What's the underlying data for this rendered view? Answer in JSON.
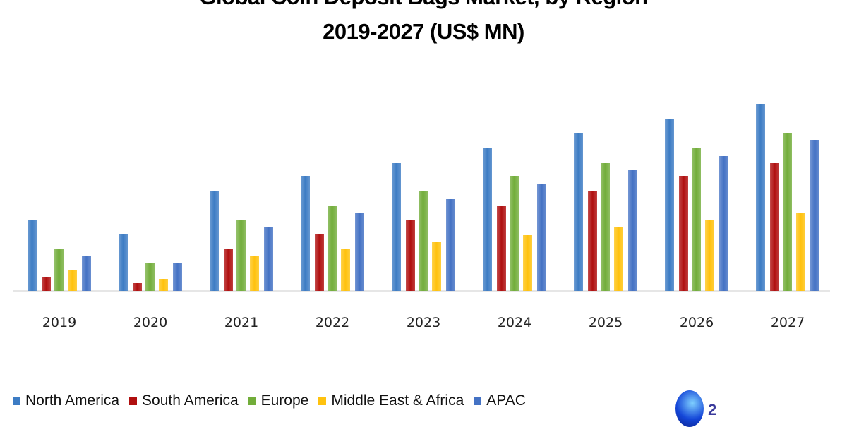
{
  "chart_data": {
    "type": "bar",
    "title": "Global Coin Deposit Bags Market, by Region",
    "subtitle": "2019-2027 (US$ MN)",
    "xlabel": "",
    "ylabel": "",
    "ylim": [
      0,
      280
    ],
    "grid": false,
    "legend_position": "bottom",
    "categories": [
      "2019",
      "2020",
      "2021",
      "2022",
      "2023",
      "2024",
      "2025",
      "2026",
      "2027"
    ],
    "series": [
      {
        "name": "North America",
        "color": "#3d7cc4",
        "values": [
          100,
          81,
          142,
          162,
          181,
          203,
          223,
          244,
          264
        ]
      },
      {
        "name": "South America",
        "color": "#b00f0f",
        "values": [
          19,
          11,
          59,
          81,
          100,
          120,
          142,
          162,
          181
        ]
      },
      {
        "name": "Europe",
        "color": "#72ad3a",
        "values": [
          59,
          39,
          100,
          120,
          142,
          162,
          181,
          203,
          223
        ]
      },
      {
        "name": "Middle East & Africa",
        "color": "#ffc20e",
        "values": [
          30,
          17,
          49,
          59,
          69,
          79,
          90,
          100,
          110
        ]
      },
      {
        "name": "APAC",
        "color": "#4472c4",
        "values": [
          49,
          39,
          90,
          110,
          130,
          151,
          171,
          191,
          213
        ]
      }
    ]
  },
  "logo": {
    "text": "2"
  }
}
